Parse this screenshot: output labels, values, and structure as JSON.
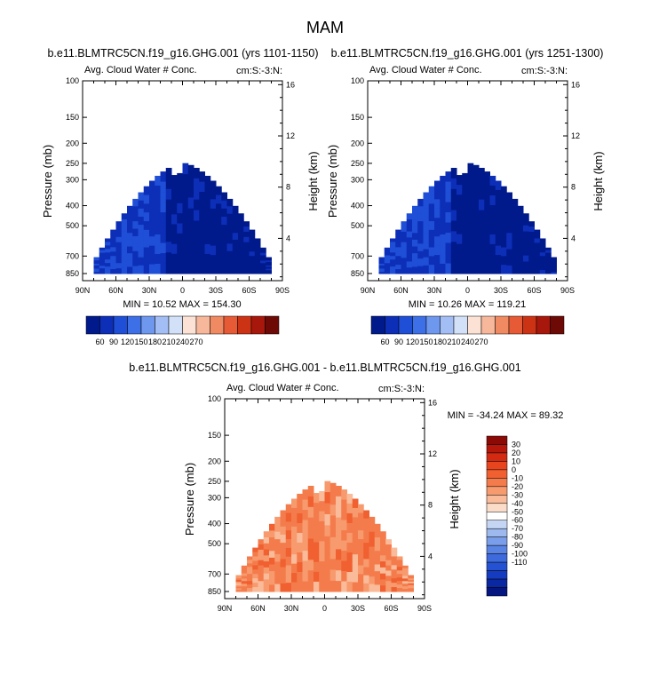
{
  "figure_title": "MAM",
  "chart_data": [
    {
      "type": "heatmap",
      "title": "b.e11.BLMTRC5CN.f19_g16.GHG.001 (yrs 1101-1150)",
      "left_string": "Avg. Cloud Water # Conc.",
      "right_string": "cm:S:-3:N:",
      "ylabel": "Pressure (mb)",
      "ylabel_right": "Height (km)",
      "x_ticks": [
        "90N",
        "60N",
        "30N",
        "0",
        "30S",
        "60S",
        "90S"
      ],
      "y_ticks": [
        "100",
        "150",
        "200",
        "250",
        "300",
        "400",
        "500",
        "700",
        "850"
      ],
      "y_ticks_right": [
        "16",
        "12",
        "8",
        "4"
      ],
      "stats": "MIN = 10.52  MAX = 154.30",
      "colorbar": {
        "orientation": "horizontal",
        "labels": [
          "60",
          "90",
          "120",
          "150",
          "180",
          "210",
          "240",
          "270"
        ],
        "colors": [
          "#001a8c",
          "#0d2fb8",
          "#1f4fd6",
          "#3d6fe6",
          "#6e97ee",
          "#a3bef4",
          "#d2e0f8",
          "#fbe2d4",
          "#f6b79a",
          "#ef8a63",
          "#e65a35",
          "#cc3315",
          "#a8170b",
          "#6e0a05"
        ]
      },
      "grid": false
    },
    {
      "type": "heatmap",
      "title": "b.e11.BLMTRC5CN.f19_g16.GHG.001 (yrs 1251-1300)",
      "left_string": "Avg. Cloud Water # Conc.",
      "right_string": "cm:S:-3:N:",
      "ylabel": "Pressure (mb)",
      "ylabel_right": "Height (km)",
      "x_ticks": [
        "90N",
        "60N",
        "30N",
        "0",
        "30S",
        "60S",
        "90S"
      ],
      "y_ticks": [
        "100",
        "150",
        "200",
        "250",
        "300",
        "400",
        "500",
        "700",
        "850"
      ],
      "y_ticks_right": [
        "16",
        "12",
        "8",
        "4"
      ],
      "stats": "MIN = 10.26  MAX = 119.21",
      "colorbar": {
        "orientation": "horizontal",
        "labels": [
          "60",
          "90",
          "120",
          "150",
          "180",
          "210",
          "240",
          "270"
        ],
        "colors": [
          "#001a8c",
          "#0d2fb8",
          "#1f4fd6",
          "#3d6fe6",
          "#6e97ee",
          "#a3bef4",
          "#d2e0f8",
          "#fbe2d4",
          "#f6b79a",
          "#ef8a63",
          "#e65a35",
          "#cc3315",
          "#a8170b",
          "#6e0a05"
        ]
      },
      "grid": false
    },
    {
      "type": "heatmap",
      "title": "b.e11.BLMTRC5CN.f19_g16.GHG.001 - b.e11.BLMTRC5CN.f19_g16.GHG.001",
      "left_string": "Avg. Cloud Water # Conc.",
      "right_string": "cm:S:-3:N:",
      "ylabel": "Pressure (mb)",
      "ylabel_right": "Height (km)",
      "x_ticks": [
        "90N",
        "60N",
        "30N",
        "0",
        "30S",
        "60S",
        "90S"
      ],
      "y_ticks": [
        "100",
        "150",
        "200",
        "250",
        "300",
        "400",
        "500",
        "700",
        "850"
      ],
      "y_ticks_right": [
        "16",
        "12",
        "8",
        "4"
      ],
      "stats": "MIN = -34.24  MAX =  89.32",
      "colorbar": {
        "orientation": "vertical",
        "labels": [
          "30",
          "20",
          "10",
          "0",
          "-10",
          "-20",
          "-30",
          "-40",
          "-50",
          "-60",
          "-70",
          "-80",
          "-90",
          "-100",
          "-110"
        ],
        "colors": [
          "#8c0a05",
          "#b5170b",
          "#d42a12",
          "#e8451e",
          "#f06030",
          "#f47c4c",
          "#f79a6e",
          "#f9bb99",
          "#fbdcc8",
          "#ffffff",
          "#c5d6f4",
          "#9db9ee",
          "#7a9ee9",
          "#5a84e4",
          "#3d6bdd",
          "#2552d2",
          "#153cc0",
          "#0b28a3",
          "#061680"
        ]
      },
      "grid": false
    }
  ]
}
